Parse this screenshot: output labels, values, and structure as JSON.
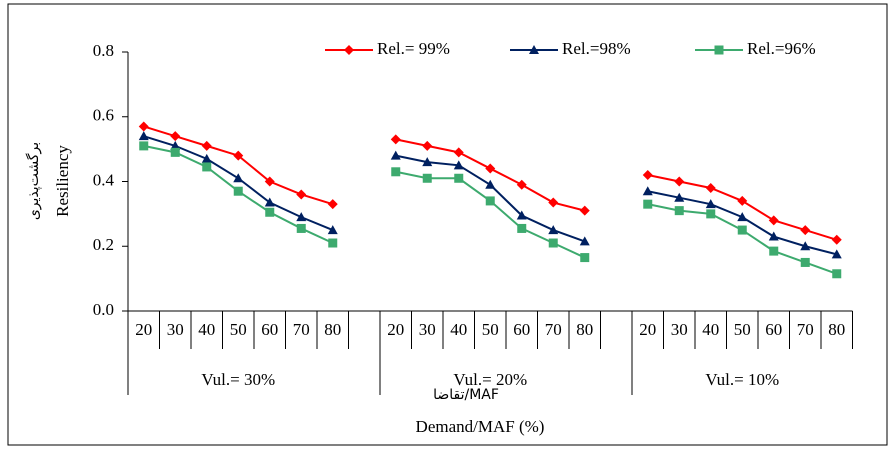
{
  "chart_data": {
    "type": "line",
    "y_label": "Resiliency",
    "y_label_fa": "برگشت‌پذیری",
    "x_label": "Demand/MAF  (%)",
    "x_label_fa": "تقاضا/MAF",
    "categories": [
      "20",
      "30",
      "40",
      "50",
      "60",
      "70",
      "80",
      null,
      "20",
      "30",
      "40",
      "50",
      "60",
      "70",
      "80",
      null,
      "20",
      "30",
      "40",
      "50",
      "60",
      "70",
      "80"
    ],
    "group_labels": [
      "Vul.= 30%",
      "Vul.= 20%",
      "Vul.= 10%"
    ],
    "series": [
      {
        "name": "Rel.= 99%",
        "color": "#ff0000",
        "marker": "diamond",
        "values": [
          0.57,
          0.54,
          0.51,
          0.48,
          0.4,
          0.36,
          0.33,
          null,
          0.53,
          0.51,
          0.49,
          0.44,
          0.39,
          0.335,
          0.31,
          null,
          0.42,
          0.4,
          0.38,
          0.34,
          0.28,
          0.25,
          0.22
        ]
      },
      {
        "name": "Rel.=98%",
        "color": "#002060",
        "marker": "triangle",
        "values": [
          0.54,
          0.51,
          0.47,
          0.41,
          0.335,
          0.29,
          0.25,
          null,
          0.48,
          0.46,
          0.45,
          0.39,
          0.295,
          0.25,
          0.215,
          null,
          0.37,
          0.35,
          0.33,
          0.29,
          0.23,
          0.2,
          0.175
        ]
      },
      {
        "name": "Rel.=96%",
        "color": "#3daa6e",
        "marker": "square",
        "values": [
          0.51,
          0.49,
          0.445,
          0.37,
          0.305,
          0.255,
          0.21,
          null,
          0.43,
          0.41,
          0.41,
          0.34,
          0.255,
          0.21,
          0.165,
          null,
          0.33,
          0.31,
          0.3,
          0.25,
          0.185,
          0.15,
          0.115
        ]
      }
    ],
    "ylim": [
      0,
      0.8
    ],
    "yticks": [
      {
        "value": 0,
        "label": "0.0"
      },
      0.2,
      0.4,
      0.6,
      0.8
    ],
    "grid": false,
    "legend": "top"
  }
}
